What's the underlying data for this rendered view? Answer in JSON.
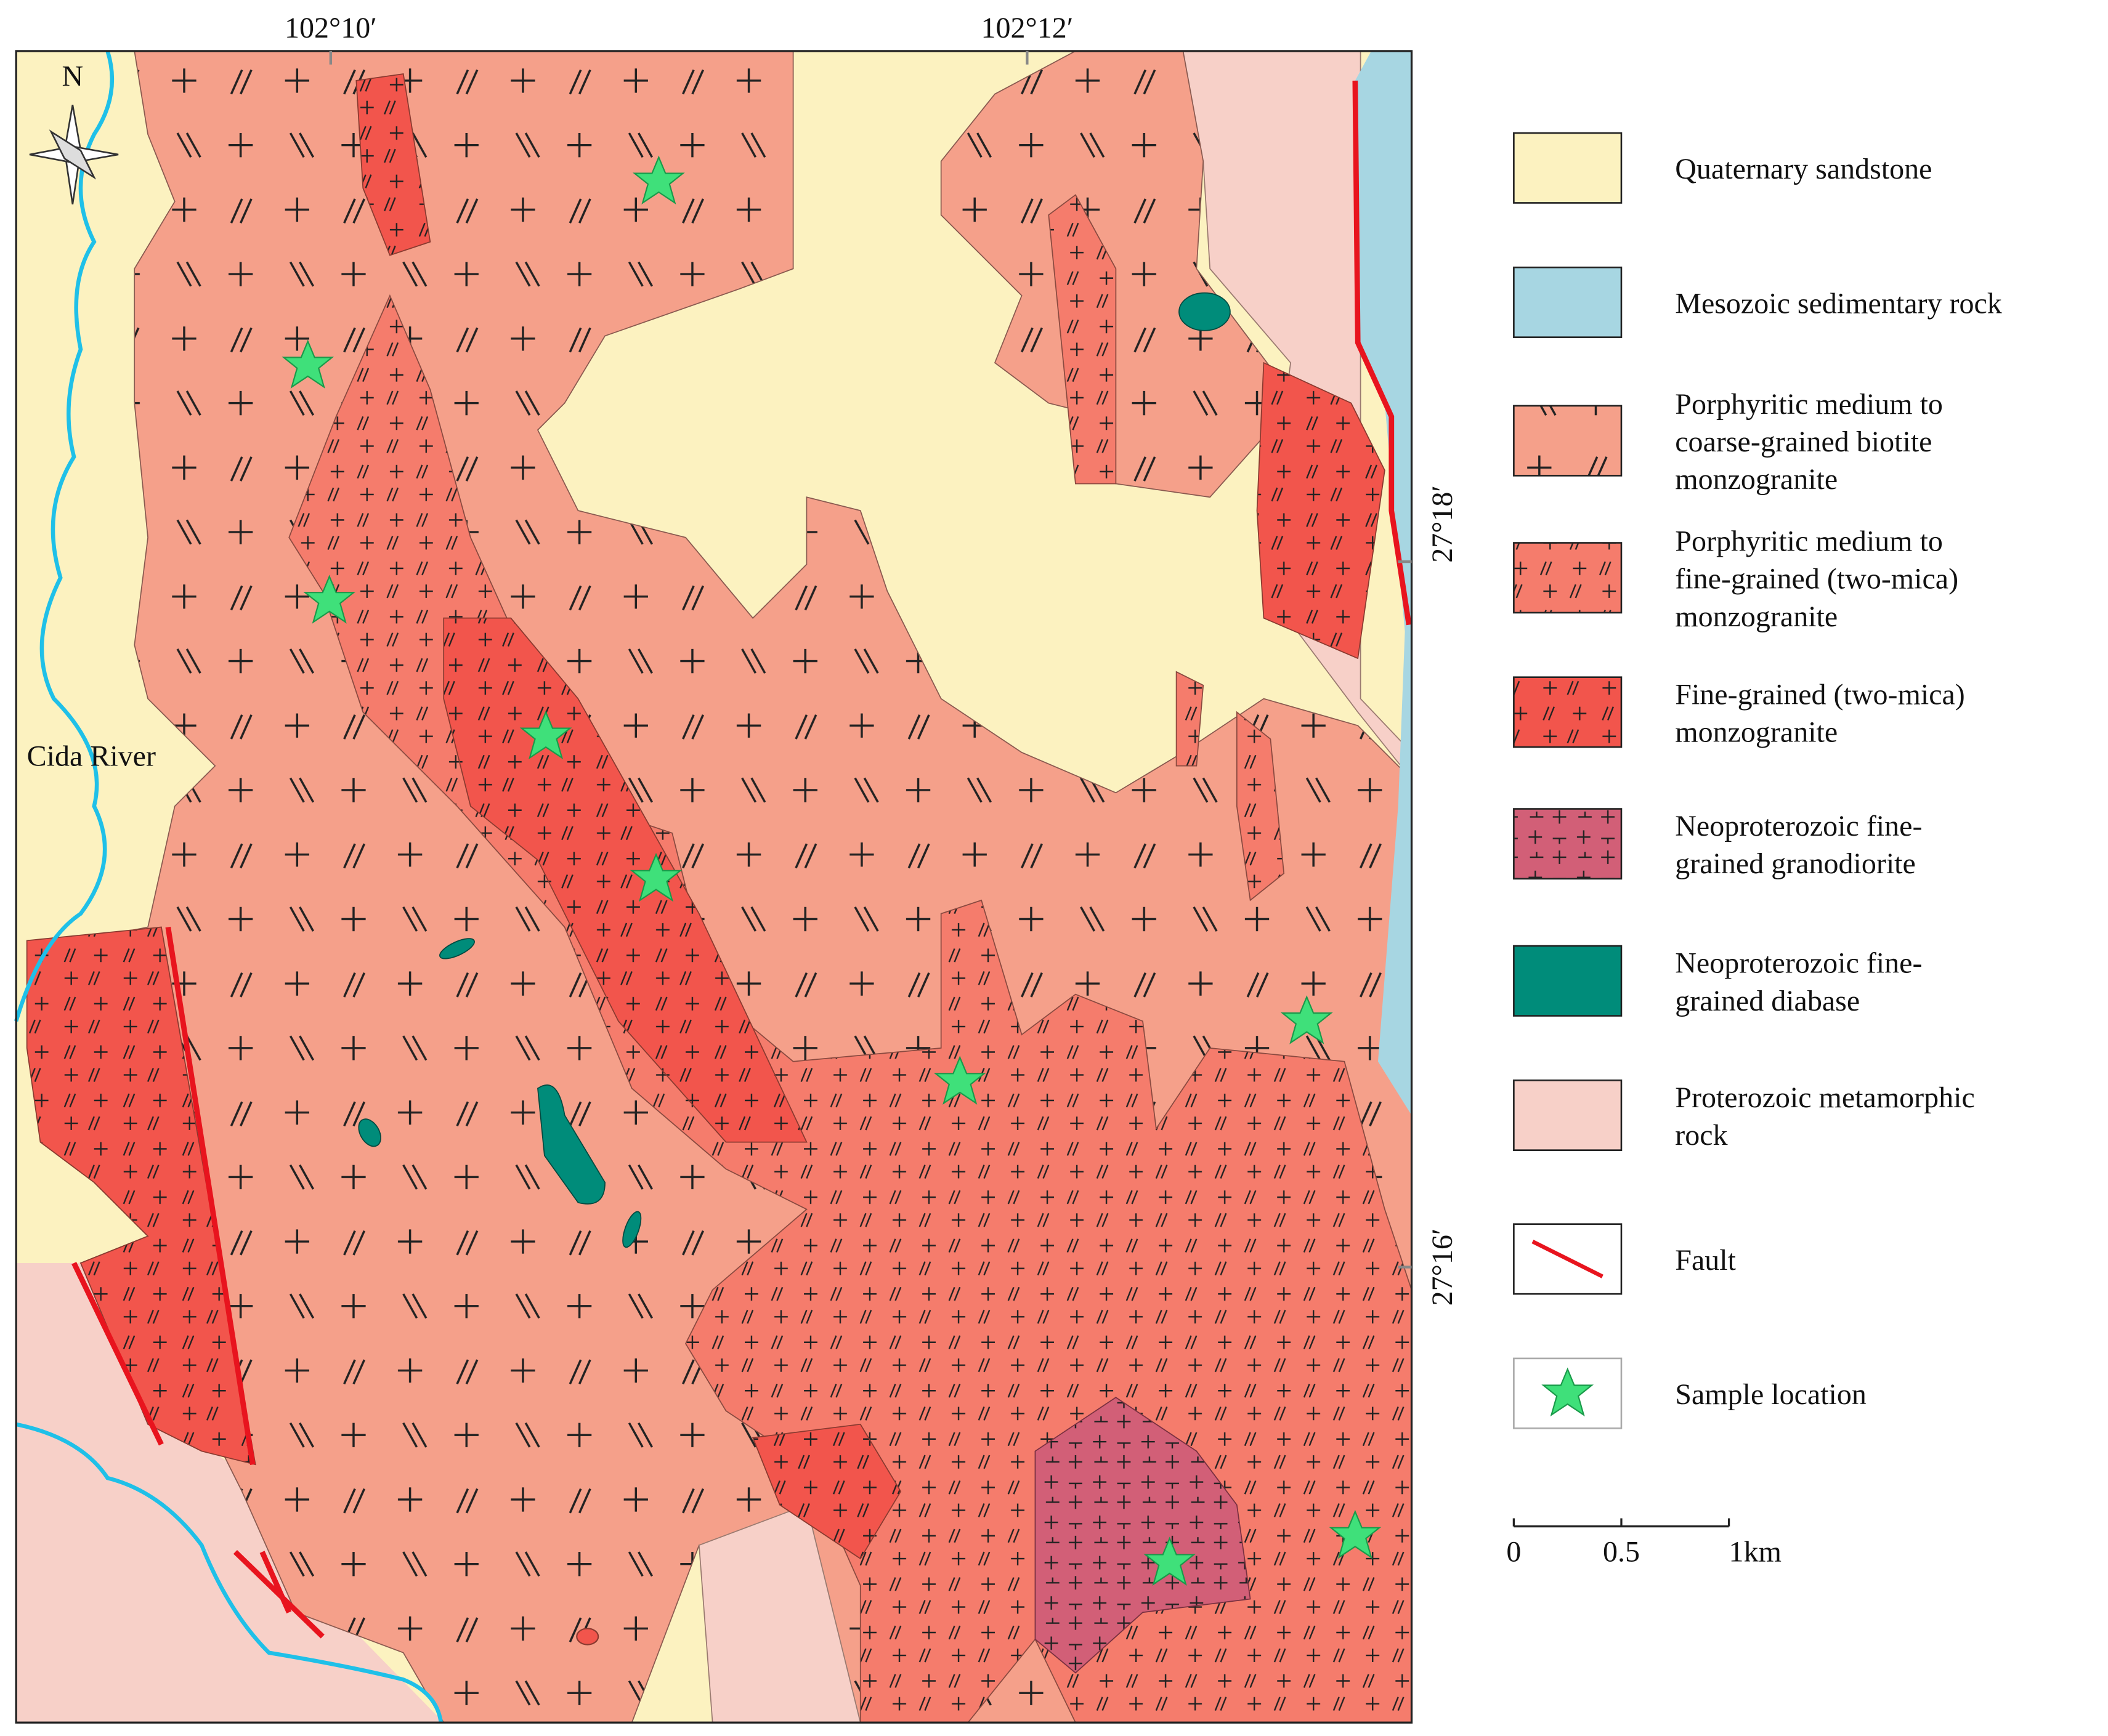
{
  "map": {
    "north": "N",
    "river": "Cida River",
    "top_coordinates": [
      "102°10′",
      "102°12′"
    ],
    "right_coordinates": [
      "27°18′",
      "27°16′"
    ]
  },
  "legend": {
    "items": [
      {
        "label": [
          "Quaternary sandstone"
        ]
      },
      {
        "label": [
          "Mesozoic sedimentary rock"
        ]
      },
      {
        "label": [
          "Porphyritic medium to",
          "coarse-grained biotite",
          "monzogranite"
        ]
      },
      {
        "label": [
          "Porphyritic medium to",
          "fine-grained (two-mica)",
          "monzogranite"
        ]
      },
      {
        "label": [
          "Fine-grained (two-mica)",
          "monzogranite"
        ]
      },
      {
        "label": [
          "Neoproterozoic fine-",
          "grained granodiorite"
        ]
      },
      {
        "label": [
          "Neoproterozoic fine-",
          "grained diabase"
        ]
      },
      {
        "label": [
          "Proterozoic metamorphic",
          "rock"
        ]
      },
      {
        "label": [
          "Fault"
        ]
      },
      {
        "label": [
          "Sample location"
        ]
      }
    ]
  },
  "scale_bar": {
    "labels": [
      "0",
      "0.5",
      "1km"
    ]
  }
}
